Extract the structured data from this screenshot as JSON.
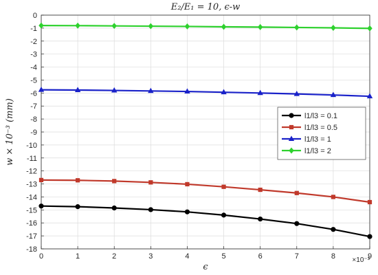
{
  "chart_data": {
    "type": "line",
    "title": "E₂/E₁ = 10, ϵ-w",
    "xlabel": "ϵ",
    "ylabel": "w × 10⁻³ (mm)",
    "x_exponent_label": "×10⁻³",
    "x": [
      0,
      1,
      2,
      3,
      4,
      5,
      6,
      7,
      8,
      9
    ],
    "xlim": [
      0,
      9
    ],
    "ylim": [
      -18,
      0
    ],
    "xticks": [
      0,
      1,
      2,
      3,
      4,
      5,
      6,
      7,
      8,
      9
    ],
    "yticks": [
      0,
      -1,
      -2,
      -3,
      -4,
      -5,
      -6,
      -7,
      -8,
      -9,
      -10,
      -11,
      -12,
      -13,
      -14,
      -15,
      -16,
      -17,
      -18
    ],
    "grid": true,
    "legend_position": "right",
    "series": [
      {
        "name": "l1/l3 = 0.1",
        "color": "#000000",
        "marker": "circle",
        "values": [
          -14.7,
          -14.75,
          -14.85,
          -14.98,
          -15.15,
          -15.4,
          -15.7,
          -16.05,
          -16.5,
          -17.05
        ]
      },
      {
        "name": "l1/l3 = 0.5",
        "color": "#c0392b",
        "marker": "square",
        "values": [
          -12.7,
          -12.72,
          -12.78,
          -12.88,
          -13.02,
          -13.22,
          -13.45,
          -13.7,
          -14.0,
          -14.4
        ]
      },
      {
        "name": "l1/l3 = 1",
        "color": "#1a22c9",
        "marker": "triangle",
        "values": [
          -5.75,
          -5.77,
          -5.8,
          -5.84,
          -5.88,
          -5.94,
          -6.0,
          -6.07,
          -6.15,
          -6.25
        ]
      },
      {
        "name": "l1/l3 = 2",
        "color": "#2ed12e",
        "marker": "diamond",
        "values": [
          -0.8,
          -0.81,
          -0.83,
          -0.85,
          -0.87,
          -0.9,
          -0.92,
          -0.95,
          -0.98,
          -1.02
        ]
      }
    ]
  }
}
